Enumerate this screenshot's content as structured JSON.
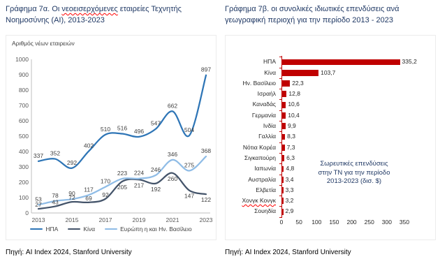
{
  "left_panel": {
    "title_prefix": "Γράφημα 7α. Οι ",
    "title_misspelled": "νεοεισερχόμενες",
    "title_suffix": " εταιρείες Τεχνητής Νοημοσύνης (AI), 2013-2023"
  },
  "right_panel": {
    "title": "Γράφημα 7β. οι συνολικές ιδιωτικές επενδύσεις ανά γεωγραφική περιοχή για την περίοδο 2013 - 2023"
  },
  "colors": {
    "title_navy": "#1F3864",
    "bar_red": "#C00000",
    "spellcheck_red": "#FF0000",
    "axis_gray": "#BFBFBF"
  },
  "chart_data": [
    {
      "type": "line",
      "title": "Γράφημα 7α. Οι νεοεισερχόμενες εταιρείες Τεχνητής Νοημοσύνης (AI), 2013-2023",
      "ylabel": "Αριθμός νέων εταιρειών",
      "x": [
        2013,
        2014,
        2015,
        2016,
        2017,
        2018,
        2019,
        2020,
        2021,
        2022,
        2023
      ],
      "x_ticks": [
        "2013",
        "2015",
        "2017",
        "2019",
        "2021",
        "2023"
      ],
      "y_ticks": [
        0,
        100,
        200,
        300,
        400,
        500,
        600,
        700,
        800,
        900,
        1000
      ],
      "ylim": [
        0,
        1000
      ],
      "grid": false,
      "legend_position": "bottom",
      "series": [
        {
          "name": "ΗΠΑ",
          "color": "#2E75B6",
          "values": [
            337,
            352,
            292,
            402,
            510,
            516,
            496,
            547,
            662,
            504,
            897
          ]
        },
        {
          "name": "Κίνα",
          "color": "#44546A",
          "values": [
            27,
            43,
            72,
            69,
            92,
            205,
            217,
            192,
            260,
            147,
            122
          ]
        },
        {
          "name": "Ευρώπη η και Ην. Βασίλειο",
          "color": "#8FBCE6",
          "values": [
            53,
            78,
            90,
            117,
            170,
            223,
            224,
            246,
            346,
            275,
            368
          ]
        }
      ],
      "source": "Πηγή: AI Index 2024, Stanford University"
    },
    {
      "type": "bar",
      "orientation": "horizontal",
      "title": "Γράφημα 7β. οι συνολικές ιδιωτικές επενδύσεις ανά γεωγραφική περιοχή για την περίοδο 2013 - 2023",
      "categories": [
        "ΗΠΑ",
        "Κίνα",
        "Ην. Βασίλειο",
        "Ισραήλ",
        "Καναδάς",
        "Γερμανία",
        "Ινδία",
        "Γαλλία",
        "Νότια Κορέα",
        "Σιγκαπούρη",
        "Ιαπωνία",
        "Αυστραλία",
        "Ελβετία",
        "Χονγκ Κονγκ",
        "Σουηδία"
      ],
      "values": [
        335.2,
        103.7,
        22.3,
        12.8,
        10.6,
        10.4,
        9.9,
        8.3,
        7.3,
        6.3,
        4.8,
        3.4,
        3.3,
        3.2,
        2.9
      ],
      "value_labels": [
        "335,2",
        "103,7",
        "22,3",
        "12,8",
        "10,6",
        "10,4",
        "9,9",
        "8,3",
        "7,3",
        "6,3",
        "4,8",
        "3,4",
        "3,3",
        "3,2",
        "2,9"
      ],
      "x_ticks": [
        "0",
        "50",
        "100",
        "150",
        "200",
        "250",
        "300",
        "350"
      ],
      "xlim": [
        0,
        350
      ],
      "bar_color": "#C00000",
      "axis_color": "#C00000",
      "misspelled_categories": [
        "Χονγκ Κονγκ"
      ],
      "annotation": "Σωρευτικές επενδύσεις στην ΤΝ για την περίοδο 2013-2023 (δισ. $)",
      "source": "Πηγή: AI Index 2024, Stanford University"
    }
  ]
}
